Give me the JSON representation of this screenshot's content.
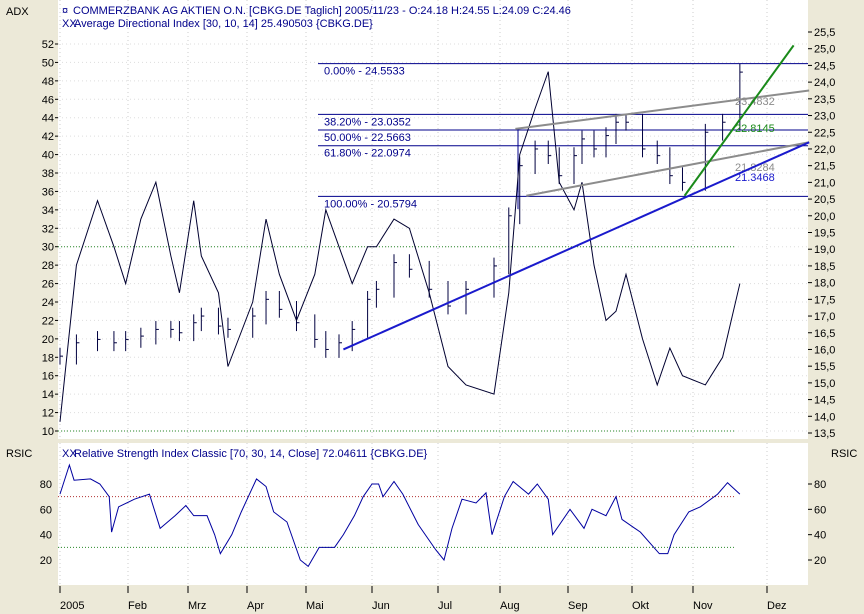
{
  "main_panel": {
    "left_label": "ADX",
    "legend_price": "COMMERZBANK AG AKTIEN O.N. [CBKG.DE  Taglich] 2005/11/23 - O:24.18 H:24.55 L:24.09 C:24.46",
    "legend_adx": "Average Directional Index [30, 10, 14] 25.490503 {CBKG.DE}"
  },
  "rsi_panel": {
    "left_label": "RSIC",
    "right_label": "RSIC",
    "legend": "Relative Strength Index Classic [70, 30, 14, Close] 72.04611 {CBKG.DE}"
  },
  "colors": {
    "background": "#ece9d8",
    "panel": "#ffffff",
    "price": "#000040",
    "adx": "#000030",
    "rsi": "#0000a0",
    "fib": "#00008b",
    "channel": "#8c8c8c",
    "trend_blue": "#1a1acc",
    "trend_green": "#1a8a1a"
  },
  "chart_data": [
    {
      "type": "line",
      "name": "price-and-adx",
      "x_ticks": [
        "2005",
        "Feb",
        "Mrz",
        "Apr",
        "Mai",
        "Jun",
        "Jul",
        "Aug",
        "Sep",
        "Okt",
        "Nov",
        "Dez"
      ],
      "y_left": {
        "label": "ADX",
        "range": [
          10,
          52
        ],
        "ticks": [
          "10",
          "12",
          "14",
          "16",
          "18",
          "20",
          "22",
          "24",
          "26",
          "28",
          "30",
          "32",
          "34",
          "36",
          "38",
          "40",
          "42",
          "44",
          "46",
          "48",
          "50",
          "52"
        ]
      },
      "y_right": {
        "range": [
          13.5,
          25.5
        ],
        "ticks": [
          "13,5",
          "14,0",
          "14,5",
          "15,0",
          "15,5",
          "16,0",
          "16,5",
          "17,0",
          "17,5",
          "18,0",
          "18,5",
          "19,0",
          "19,5",
          "20,0",
          "20,5",
          "21,0",
          "21,5",
          "22,0",
          "22,5",
          "23,0",
          "23,5",
          "24,0",
          "24,5",
          "25,0",
          "25,5"
        ]
      },
      "grid": true,
      "adx_levels": [
        30,
        10
      ],
      "price_series": {
        "dates": [
          "2005-01-03",
          "2005-01-10",
          "2005-01-19",
          "2005-01-26",
          "2005-01-31",
          "2005-02-07",
          "2005-02-14",
          "2005-02-21",
          "2005-02-25",
          "2005-03-04",
          "2005-03-08",
          "2005-03-17",
          "2005-03-22",
          "2005-04-04",
          "2005-04-11",
          "2005-04-18",
          "2005-04-27",
          "2005-05-06",
          "2005-05-11",
          "2005-05-17",
          "2005-05-23",
          "2005-05-30",
          "2005-06-03",
          "2005-06-11",
          "2005-06-18",
          "2005-06-27",
          "2005-07-06",
          "2005-07-15",
          "2005-07-29",
          "2005-08-05",
          "2005-08-10",
          "2005-08-17",
          "2005-08-23",
          "2005-08-28",
          "2005-09-04",
          "2005-09-08",
          "2005-09-14",
          "2005-09-20",
          "2005-09-25",
          "2005-09-30",
          "2005-10-08",
          "2005-10-15",
          "2005-10-21",
          "2005-10-27",
          "2005-11-06",
          "2005-11-13",
          "2005-11-20"
        ],
        "close": [
          15.8,
          16.2,
          16.3,
          16.2,
          16.3,
          16.4,
          16.6,
          16.6,
          16.5,
          16.8,
          17.0,
          16.7,
          16.6,
          17.0,
          17.5,
          17.2,
          16.8,
          16.3,
          16.0,
          16.2,
          16.6,
          17.5,
          17.8,
          18.6,
          18.4,
          17.8,
          17.3,
          17.8,
          18.5,
          20.0,
          21.5,
          22.0,
          21.8,
          21.2,
          21.8,
          22.3,
          22.0,
          22.4,
          22.8,
          22.8,
          22.0,
          21.8,
          21.2,
          21.0,
          22.5,
          22.8,
          24.3
        ]
      },
      "adx_series": {
        "dates": [
          "2005-01-03",
          "2005-01-10",
          "2005-01-19",
          "2005-01-26",
          "2005-01-31",
          "2005-02-07",
          "2005-02-14",
          "2005-02-21",
          "2005-02-25",
          "2005-03-04",
          "2005-03-08",
          "2005-03-17",
          "2005-03-22",
          "2005-04-04",
          "2005-04-11",
          "2005-04-18",
          "2005-04-27",
          "2005-05-06",
          "2005-05-11",
          "2005-05-17",
          "2005-05-23",
          "2005-05-30",
          "2005-06-03",
          "2005-06-11",
          "2005-06-18",
          "2005-06-27",
          "2005-07-06",
          "2005-07-15",
          "2005-07-29",
          "2005-08-05",
          "2005-08-10",
          "2005-08-17",
          "2005-08-23",
          "2005-08-28",
          "2005-09-04",
          "2005-09-08",
          "2005-09-14",
          "2005-09-20",
          "2005-09-25",
          "2005-09-30",
          "2005-10-08",
          "2005-10-15",
          "2005-10-21",
          "2005-10-27",
          "2005-11-06",
          "2005-11-13",
          "2005-11-20"
        ],
        "values": [
          11,
          28,
          35,
          30,
          26,
          33,
          37,
          29,
          25,
          35,
          29,
          25,
          17,
          24,
          33,
          27,
          22,
          27,
          34,
          30,
          26,
          30,
          30,
          33,
          32,
          25,
          17,
          15,
          14,
          25,
          40,
          45,
          49,
          37,
          34,
          37,
          28,
          22,
          23,
          27,
          20,
          15,
          19,
          16,
          15,
          18,
          26
        ]
      },
      "fibonacci": [
        {
          "label": "0.00% - 24.5533",
          "price": 24.5533
        },
        {
          "label": "38.20% - 23.0352",
          "price": 23.0352
        },
        {
          "label": "50.00% - 22.5663",
          "price": 22.5663
        },
        {
          "label": "61.80% - 22.0974",
          "price": 22.0974
        },
        {
          "label": "100.00% - 20.5794",
          "price": 20.5794
        }
      ],
      "trendlines": [
        {
          "label": "23.4832",
          "color": "#8c8c8c",
          "from": [
            "2005-08-08",
            22.6
          ],
          "to": [
            "2005-12-20",
            23.75
          ]
        },
        {
          "label": "21.8284",
          "color": "#8c8c8c",
          "from": [
            "2005-08-13",
            20.6
          ],
          "to": [
            "2005-12-20",
            22.2
          ]
        },
        {
          "label": "21.3468",
          "color": "#1a1acc",
          "from": [
            "2005-05-19",
            16.0
          ],
          "to": [
            "2005-12-20",
            22.2
          ]
        },
        {
          "label": "22.8145",
          "color": "#1a8a1a",
          "from": [
            "2005-10-28",
            20.6
          ],
          "to": [
            "2005-12-13",
            25.1
          ]
        }
      ]
    },
    {
      "type": "line",
      "name": "rsi",
      "y_range": [
        0,
        100
      ],
      "ticks": [
        "20",
        "40",
        "60",
        "80"
      ],
      "levels": [
        70,
        30
      ],
      "dates": [
        "2005-01-03",
        "2005-01-07",
        "2005-01-09",
        "2005-01-16",
        "2005-01-20",
        "2005-01-24",
        "2005-01-25",
        "2005-01-28",
        "2005-02-04",
        "2005-02-11",
        "2005-02-16",
        "2005-02-23",
        "2005-02-28",
        "2005-03-04",
        "2005-03-11",
        "2005-03-15",
        "2005-03-18",
        "2005-03-24",
        "2005-03-29",
        "2005-04-06",
        "2005-04-11",
        "2005-04-15",
        "2005-04-22",
        "2005-04-29",
        "2005-05-03",
        "2005-05-08",
        "2005-05-15",
        "2005-05-19",
        "2005-05-24",
        "2005-05-28",
        "2005-06-01",
        "2005-06-04",
        "2005-06-06",
        "2005-06-11",
        "2005-06-15",
        "2005-06-22",
        "2005-06-30",
        "2005-07-04",
        "2005-07-08",
        "2005-07-13",
        "2005-07-20",
        "2005-07-25",
        "2005-07-28",
        "2005-08-03",
        "2005-08-07",
        "2005-08-14",
        "2005-08-18",
        "2005-08-23",
        "2005-08-25",
        "2005-09-02",
        "2005-09-09",
        "2005-09-13",
        "2005-09-20",
        "2005-09-25",
        "2005-09-28",
        "2005-10-07",
        "2005-10-16",
        "2005-10-20",
        "2005-10-23",
        "2005-10-30",
        "2005-11-04",
        "2005-11-11",
        "2005-11-15",
        "2005-11-20"
      ],
      "values": [
        72,
        95,
        83,
        84,
        80,
        70,
        42,
        62,
        68,
        72,
        45,
        55,
        63,
        55,
        55,
        40,
        25,
        40,
        58,
        84,
        78,
        58,
        50,
        20,
        15,
        30,
        30,
        40,
        55,
        70,
        80,
        80,
        70,
        82,
        72,
        48,
        28,
        20,
        45,
        68,
        65,
        73,
        40,
        70,
        82,
        72,
        80,
        68,
        40,
        60,
        45,
        60,
        55,
        70,
        52,
        42,
        25,
        25,
        40,
        58,
        62,
        72,
        81,
        72
      ]
    }
  ]
}
